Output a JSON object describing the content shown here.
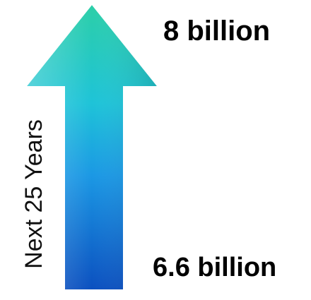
{
  "diagram": {
    "end_label": "8 billion",
    "start_label": "6.6 billion",
    "duration_label": "Next 25 Years",
    "direction": "up"
  },
  "colors": {
    "arrow_top": "#26c6a9",
    "arrow_mid": "#1ea6e0",
    "arrow_bottom": "#0d57c4",
    "text": "#000000"
  }
}
